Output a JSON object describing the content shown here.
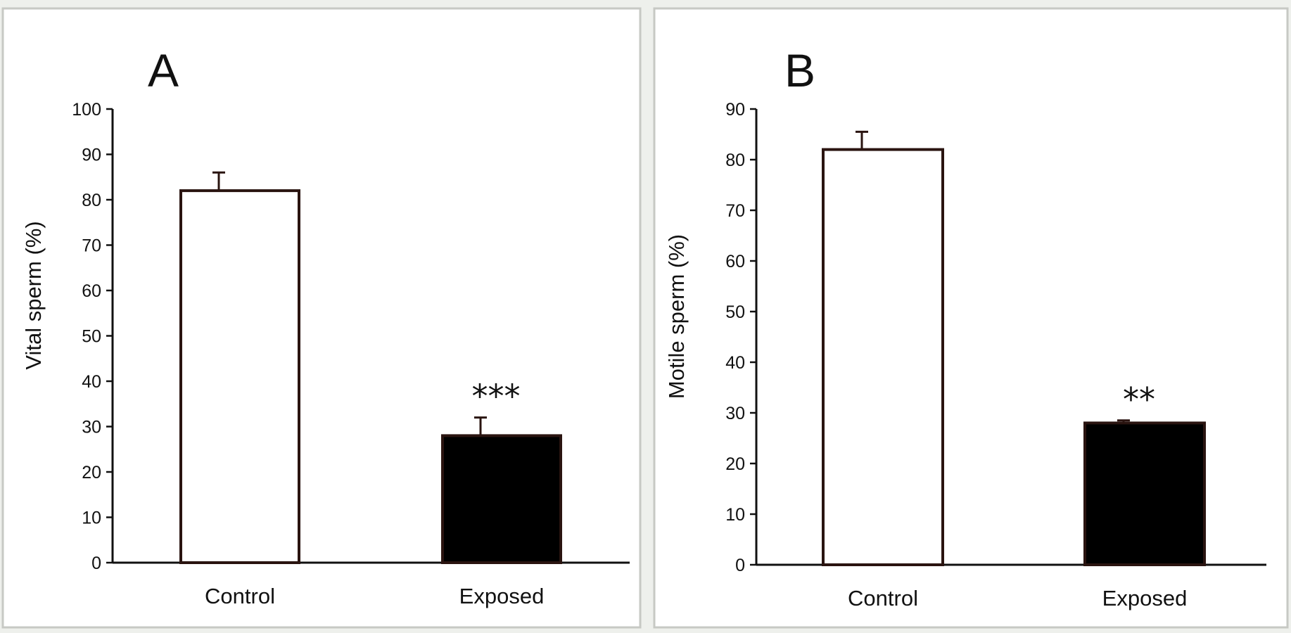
{
  "chart_data": [
    {
      "type": "bar",
      "panel_label": "A",
      "categories": [
        "Control",
        "Exposed"
      ],
      "values": [
        82,
        28
      ],
      "error": [
        4,
        4
      ],
      "significance": [
        "",
        "***"
      ],
      "bar_colors": [
        "#ffffff",
        "#000000"
      ],
      "edge_color": "#2a1410",
      "xlabel": "",
      "ylabel": "Vital sperm (%)",
      "ylim": [
        0,
        100
      ],
      "yticks": [
        0,
        10,
        20,
        30,
        40,
        50,
        60,
        70,
        80,
        90,
        100
      ],
      "grid": false
    },
    {
      "type": "bar",
      "panel_label": "B",
      "categories": [
        "Control",
        "Exposed"
      ],
      "values": [
        82,
        28
      ],
      "error": [
        3.5,
        0.5
      ],
      "significance": [
        "",
        "**"
      ],
      "bar_colors": [
        "#ffffff",
        "#000000"
      ],
      "edge_color": "#2a1410",
      "xlabel": "",
      "ylabel": "Motile sperm (%)",
      "ylim": [
        0,
        90
      ],
      "yticks": [
        0,
        10,
        20,
        30,
        40,
        50,
        60,
        70,
        80,
        90
      ],
      "grid": false
    }
  ]
}
